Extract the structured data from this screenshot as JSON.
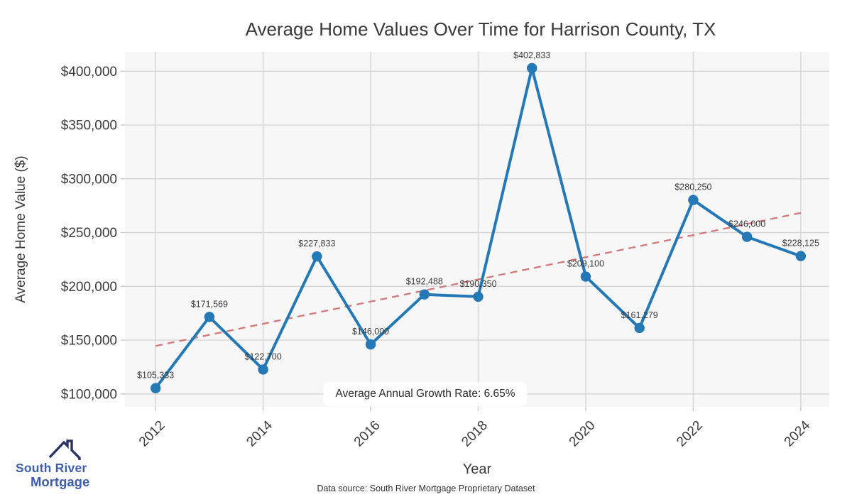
{
  "footer": "Data source: South River Mortgage Proprietary Dataset",
  "logo": {
    "line1": "South River",
    "line2": "Mortgage"
  },
  "colors": {
    "line": "#2378b5",
    "trend": "#d06c6c",
    "text": "#3a3a3a",
    "plot_background": "#f7f7f7",
    "grid": "#d6d6d6",
    "logo_blue": "#3f5fad",
    "logo_navy": "#283467"
  },
  "chart_data": {
    "type": "line",
    "title": "Average Home Values Over Time for Harrison County, TX",
    "xlabel": "Year",
    "ylabel": "Average Home Value ($)",
    "x": [
      2012,
      2013,
      2014,
      2015,
      2016,
      2017,
      2018,
      2019,
      2020,
      2021,
      2022,
      2023,
      2024
    ],
    "series": [
      {
        "name": "Average Home Value",
        "values": [
          105333,
          171569,
          122700,
          227833,
          146000,
          192488,
          190350,
          402833,
          209100,
          161279,
          280250,
          246000,
          228125
        ],
        "color": "#2378b5",
        "marker": "circle",
        "line_width": 4
      }
    ],
    "point_labels": [
      "$105,333",
      "$171,569",
      "$122,700",
      "$227,833",
      "$146,000",
      "$192,488",
      "$190,350",
      "$402,833",
      "$209,100",
      "$161,279",
      "$280,250",
      "$246,000",
      "$228,125"
    ],
    "trendline": {
      "style": "dashed",
      "x": [
        2012,
        2024
      ],
      "values": [
        144600,
        268300
      ],
      "color": "#d06c6c"
    },
    "annotation": "Average Annual Growth Rate: 6.65%",
    "yticks": [
      100000,
      150000,
      200000,
      250000,
      300000,
      350000,
      400000
    ],
    "ytick_labels": [
      "$100,000",
      "$150,000",
      "$200,000",
      "$250,000",
      "$300,000",
      "$350,000",
      "$400,000"
    ],
    "xticks": [
      2012,
      2014,
      2016,
      2018,
      2020,
      2022,
      2024
    ],
    "xtick_labels": [
      "2012",
      "2014",
      "2016",
      "2018",
      "2020",
      "2022",
      "2024"
    ],
    "xlim": [
      2011.43,
      2024.53
    ],
    "ylim": [
      88000,
      418000
    ],
    "grid": true,
    "legend": false,
    "plot_bg": "#f7f7f7",
    "grid_color": "#d6d6d6"
  }
}
